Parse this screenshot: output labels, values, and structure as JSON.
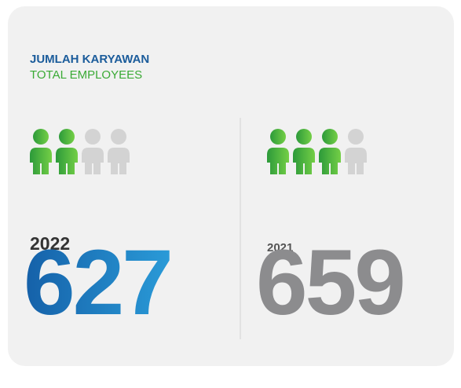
{
  "header": {
    "title": "JUMLAH KARYAWAN",
    "subtitle": "TOTAL EMPLOYEES"
  },
  "panels": [
    {
      "year": "2022",
      "value": "627",
      "filled_icons": 2,
      "total_icons": 4
    },
    {
      "year": "2021",
      "value": "659",
      "filled_icons": 3,
      "total_icons": 4
    }
  ]
}
